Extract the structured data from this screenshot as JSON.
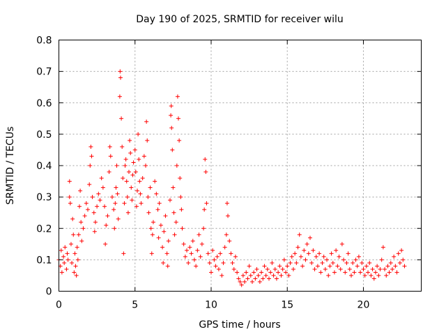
{
  "chart_data": {
    "type": "scatter",
    "title": "Day 190 of 2025, SRMTID for receiver wilu",
    "xlabel": "GPS time / hours",
    "ylabel": "SRMTID / TECUs",
    "xlim": [
      0,
      23.8
    ],
    "ylim": [
      0,
      0.8
    ],
    "xticks": [
      0,
      5,
      10,
      15,
      20
    ],
    "yticks": [
      0,
      0.1,
      0.2,
      0.3,
      0.4,
      0.5,
      0.6,
      0.7,
      0.8
    ],
    "xtick_labels": [
      "0",
      "5",
      "10",
      "15",
      "20"
    ],
    "ytick_labels": [
      "0",
      "0.1",
      "0.2",
      "0.3",
      "0.4",
      "0.5",
      "0.6",
      "0.7",
      "0.8"
    ],
    "grid": true,
    "marker": "+",
    "color": "#ff0000",
    "series": [
      {
        "name": "SRMTID",
        "points": [
          [
            0.0,
            0.1
          ],
          [
            0.1,
            0.08
          ],
          [
            0.15,
            0.13
          ],
          [
            0.2,
            0.06
          ],
          [
            0.3,
            0.11
          ],
          [
            0.35,
            0.09
          ],
          [
            0.4,
            0.14
          ],
          [
            0.5,
            0.07
          ],
          [
            0.55,
            0.12
          ],
          [
            0.6,
            0.1
          ],
          [
            0.7,
            0.35
          ],
          [
            0.7,
            0.3
          ],
          [
            0.75,
            0.28
          ],
          [
            0.8,
            0.15
          ],
          [
            0.85,
            0.09
          ],
          [
            0.9,
            0.23
          ],
          [
            0.95,
            0.18
          ],
          [
            1.0,
            0.06
          ],
          [
            1.05,
            0.12
          ],
          [
            1.1,
            0.08
          ],
          [
            1.15,
            0.05
          ],
          [
            1.2,
            0.14
          ],
          [
            1.25,
            0.1
          ],
          [
            1.3,
            0.18
          ],
          [
            1.35,
            0.27
          ],
          [
            1.4,
            0.32
          ],
          [
            1.45,
            0.22
          ],
          [
            1.5,
            0.16
          ],
          [
            1.6,
            0.2
          ],
          [
            1.7,
            0.24
          ],
          [
            1.8,
            0.28
          ],
          [
            1.9,
            0.26
          ],
          [
            2.0,
            0.34
          ],
          [
            2.05,
            0.4
          ],
          [
            2.1,
            0.46
          ],
          [
            2.15,
            0.43
          ],
          [
            2.2,
            0.3
          ],
          [
            2.3,
            0.25
          ],
          [
            2.35,
            0.19
          ],
          [
            2.4,
            0.22
          ],
          [
            2.5,
            0.27
          ],
          [
            2.6,
            0.31
          ],
          [
            2.7,
            0.29
          ],
          [
            2.8,
            0.36
          ],
          [
            2.9,
            0.33
          ],
          [
            3.0,
            0.27
          ],
          [
            3.05,
            0.15
          ],
          [
            3.1,
            0.21
          ],
          [
            3.2,
            0.24
          ],
          [
            3.3,
            0.38
          ],
          [
            3.35,
            0.46
          ],
          [
            3.4,
            0.43
          ],
          [
            3.5,
            0.3
          ],
          [
            3.6,
            0.26
          ],
          [
            3.65,
            0.2
          ],
          [
            3.7,
            0.28
          ],
          [
            3.75,
            0.33
          ],
          [
            3.8,
            0.4
          ],
          [
            3.85,
            0.31
          ],
          [
            3.9,
            0.23
          ],
          [
            4.0,
            0.62
          ],
          [
            4.02,
            0.7
          ],
          [
            4.05,
            0.68
          ],
          [
            4.1,
            0.55
          ],
          [
            4.15,
            0.46
          ],
          [
            4.2,
            0.36
          ],
          [
            4.25,
            0.12
          ],
          [
            4.3,
            0.28
          ],
          [
            4.35,
            0.4
          ],
          [
            4.4,
            0.42
          ],
          [
            4.45,
            0.35
          ],
          [
            4.5,
            0.3
          ],
          [
            4.55,
            0.25
          ],
          [
            4.6,
            0.38
          ],
          [
            4.65,
            0.48
          ],
          [
            4.7,
            0.44
          ],
          [
            4.75,
            0.33
          ],
          [
            4.8,
            0.29
          ],
          [
            4.85,
            0.37
          ],
          [
            4.9,
            0.41
          ],
          [
            5.0,
            0.45
          ],
          [
            5.05,
            0.38
          ],
          [
            5.1,
            0.27
          ],
          [
            5.15,
            0.32
          ],
          [
            5.2,
            0.5
          ],
          [
            5.25,
            0.42
          ],
          [
            5.3,
            0.35
          ],
          [
            5.35,
            0.31
          ],
          [
            5.4,
            0.28
          ],
          [
            5.5,
            0.36
          ],
          [
            5.6,
            0.43
          ],
          [
            5.7,
            0.4
          ],
          [
            5.75,
            0.54
          ],
          [
            5.8,
            0.48
          ],
          [
            5.85,
            0.3
          ],
          [
            5.9,
            0.25
          ],
          [
            6.0,
            0.33
          ],
          [
            6.05,
            0.2
          ],
          [
            6.1,
            0.12
          ],
          [
            6.15,
            0.18
          ],
          [
            6.2,
            0.22
          ],
          [
            6.3,
            0.35
          ],
          [
            6.4,
            0.31
          ],
          [
            6.5,
            0.26
          ],
          [
            6.55,
            0.17
          ],
          [
            6.6,
            0.28
          ],
          [
            6.7,
            0.21
          ],
          [
            6.8,
            0.14
          ],
          [
            6.85,
            0.09
          ],
          [
            6.9,
            0.19
          ],
          [
            7.0,
            0.24
          ],
          [
            7.1,
            0.12
          ],
          [
            7.15,
            0.08
          ],
          [
            7.2,
            0.16
          ],
          [
            7.3,
            0.29
          ],
          [
            7.35,
            0.56
          ],
          [
            7.38,
            0.59
          ],
          [
            7.4,
            0.52
          ],
          [
            7.45,
            0.45
          ],
          [
            7.5,
            0.33
          ],
          [
            7.55,
            0.25
          ],
          [
            7.6,
            0.18
          ],
          [
            7.7,
            0.22
          ],
          [
            7.75,
            0.4
          ],
          [
            7.8,
            0.62
          ],
          [
            7.85,
            0.55
          ],
          [
            7.9,
            0.48
          ],
          [
            7.95,
            0.36
          ],
          [
            8.0,
            0.3
          ],
          [
            8.05,
            0.26
          ],
          [
            8.1,
            0.2
          ],
          [
            8.2,
            0.15
          ],
          [
            8.3,
            0.11
          ],
          [
            8.4,
            0.13
          ],
          [
            8.5,
            0.09
          ],
          [
            8.6,
            0.14
          ],
          [
            8.7,
            0.12
          ],
          [
            8.8,
            0.16
          ],
          [
            8.9,
            0.1
          ],
          [
            9.0,
            0.08
          ],
          [
            9.1,
            0.13
          ],
          [
            9.2,
            0.18
          ],
          [
            9.3,
            0.11
          ],
          [
            9.4,
            0.15
          ],
          [
            9.5,
            0.2
          ],
          [
            9.55,
            0.26
          ],
          [
            9.6,
            0.42
          ],
          [
            9.65,
            0.38
          ],
          [
            9.7,
            0.28
          ],
          [
            9.8,
            0.12
          ],
          [
            9.9,
            0.09
          ],
          [
            10.0,
            0.06
          ],
          [
            10.1,
            0.13
          ],
          [
            10.2,
            0.1
          ],
          [
            10.3,
            0.08
          ],
          [
            10.4,
            0.11
          ],
          [
            10.5,
            0.07
          ],
          [
            10.6,
            0.12
          ],
          [
            10.7,
            0.05
          ],
          [
            10.8,
            0.09
          ],
          [
            10.9,
            0.14
          ],
          [
            11.0,
            0.18
          ],
          [
            11.05,
            0.28
          ],
          [
            11.1,
            0.24
          ],
          [
            11.2,
            0.16
          ],
          [
            11.3,
            0.12
          ],
          [
            11.4,
            0.09
          ],
          [
            11.5,
            0.07
          ],
          [
            11.6,
            0.11
          ],
          [
            11.7,
            0.06
          ],
          [
            11.8,
            0.04
          ],
          [
            11.9,
            0.03
          ],
          [
            12.0,
            0.02
          ],
          [
            12.1,
            0.05
          ],
          [
            12.2,
            0.03
          ],
          [
            12.3,
            0.06
          ],
          [
            12.4,
            0.04
          ],
          [
            12.5,
            0.08
          ],
          [
            12.6,
            0.05
          ],
          [
            12.7,
            0.03
          ],
          [
            12.8,
            0.06
          ],
          [
            12.9,
            0.04
          ],
          [
            13.0,
            0.07
          ],
          [
            13.1,
            0.05
          ],
          [
            13.2,
            0.03
          ],
          [
            13.3,
            0.06
          ],
          [
            13.4,
            0.04
          ],
          [
            13.5,
            0.08
          ],
          [
            13.6,
            0.05
          ],
          [
            13.7,
            0.07
          ],
          [
            13.8,
            0.04
          ],
          [
            13.9,
            0.06
          ],
          [
            14.0,
            0.09
          ],
          [
            14.1,
            0.05
          ],
          [
            14.2,
            0.07
          ],
          [
            14.3,
            0.04
          ],
          [
            14.4,
            0.06
          ],
          [
            14.5,
            0.08
          ],
          [
            14.6,
            0.05
          ],
          [
            14.7,
            0.07
          ],
          [
            14.8,
            0.1
          ],
          [
            14.9,
            0.06
          ],
          [
            15.0,
            0.08
          ],
          [
            15.1,
            0.05
          ],
          [
            15.2,
            0.09
          ],
          [
            15.3,
            0.11
          ],
          [
            15.4,
            0.07
          ],
          [
            15.5,
            0.12
          ],
          [
            15.6,
            0.09
          ],
          [
            15.7,
            0.14
          ],
          [
            15.8,
            0.18
          ],
          [
            15.9,
            0.11
          ],
          [
            16.0,
            0.08
          ],
          [
            16.1,
            0.13
          ],
          [
            16.2,
            0.1
          ],
          [
            16.3,
            0.15
          ],
          [
            16.4,
            0.12
          ],
          [
            16.5,
            0.17
          ],
          [
            16.6,
            0.09
          ],
          [
            16.7,
            0.13
          ],
          [
            16.8,
            0.07
          ],
          [
            16.9,
            0.11
          ],
          [
            17.0,
            0.08
          ],
          [
            17.1,
            0.12
          ],
          [
            17.2,
            0.06
          ],
          [
            17.3,
            0.09
          ],
          [
            17.4,
            0.11
          ],
          [
            17.5,
            0.07
          ],
          [
            17.6,
            0.1
          ],
          [
            17.7,
            0.05
          ],
          [
            17.8,
            0.08
          ],
          [
            17.9,
            0.12
          ],
          [
            18.0,
            0.09
          ],
          [
            18.1,
            0.06
          ],
          [
            18.2,
            0.13
          ],
          [
            18.3,
            0.08
          ],
          [
            18.4,
            0.11
          ],
          [
            18.5,
            0.07
          ],
          [
            18.6,
            0.15
          ],
          [
            18.7,
            0.1
          ],
          [
            18.8,
            0.06
          ],
          [
            18.9,
            0.09
          ],
          [
            19.0,
            0.12
          ],
          [
            19.1,
            0.07
          ],
          [
            19.2,
            0.05
          ],
          [
            19.3,
            0.09
          ],
          [
            19.4,
            0.06
          ],
          [
            19.5,
            0.1
          ],
          [
            19.6,
            0.08
          ],
          [
            19.7,
            0.11
          ],
          [
            19.8,
            0.06
          ],
          [
            19.9,
            0.09
          ],
          [
            20.0,
            0.07
          ],
          [
            20.1,
            0.05
          ],
          [
            20.2,
            0.08
          ],
          [
            20.3,
            0.06
          ],
          [
            20.4,
            0.09
          ],
          [
            20.5,
            0.05
          ],
          [
            20.6,
            0.07
          ],
          [
            20.7,
            0.04
          ],
          [
            20.8,
            0.06
          ],
          [
            20.9,
            0.08
          ],
          [
            21.0,
            0.05
          ],
          [
            21.1,
            0.07
          ],
          [
            21.2,
            0.1
          ],
          [
            21.3,
            0.14
          ],
          [
            21.4,
            0.07
          ],
          [
            21.5,
            0.05
          ],
          [
            21.6,
            0.08
          ],
          [
            21.7,
            0.06
          ],
          [
            21.8,
            0.09
          ],
          [
            21.9,
            0.07
          ],
          [
            22.0,
            0.11
          ],
          [
            22.1,
            0.08
          ],
          [
            22.2,
            0.06
          ],
          [
            22.3,
            0.12
          ],
          [
            22.4,
            0.09
          ],
          [
            22.5,
            0.13
          ],
          [
            22.6,
            0.1
          ],
          [
            22.7,
            0.08
          ]
        ]
      }
    ]
  }
}
